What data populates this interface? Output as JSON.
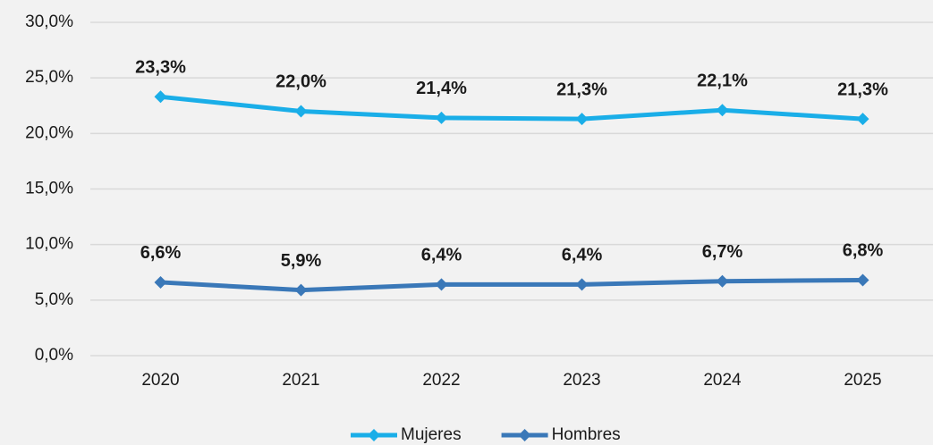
{
  "chart_data": {
    "type": "line",
    "categories": [
      "2020",
      "2021",
      "2022",
      "2023",
      "2024",
      "2025"
    ],
    "series": [
      {
        "name": "Mujeres",
        "color": "#1aaee8",
        "values": [
          23.3,
          22.0,
          21.4,
          21.3,
          22.1,
          21.3
        ],
        "value_labels": [
          "23,3%",
          "22,0%",
          "21,4%",
          "21,3%",
          "22,1%",
          "21,3%"
        ]
      },
      {
        "name": "Hombres",
        "color": "#3a78b8",
        "values": [
          6.6,
          5.9,
          6.4,
          6.4,
          6.7,
          6.8
        ],
        "value_labels": [
          "6,6%",
          "5,9%",
          "6,4%",
          "6,4%",
          "6,7%",
          "6,8%"
        ]
      }
    ],
    "ylim": [
      0,
      30
    ],
    "yticks": [
      {
        "value": 0,
        "label": "0,0%"
      },
      {
        "value": 5,
        "label": "5,0%"
      },
      {
        "value": 10,
        "label": "10,0%"
      },
      {
        "value": 15,
        "label": "15,0%"
      },
      {
        "value": 20,
        "label": "20,0%"
      },
      {
        "value": 25,
        "label": "25,0%"
      },
      {
        "value": 30,
        "label": "30,0%"
      }
    ],
    "grid": true,
    "legend": "bottom"
  }
}
